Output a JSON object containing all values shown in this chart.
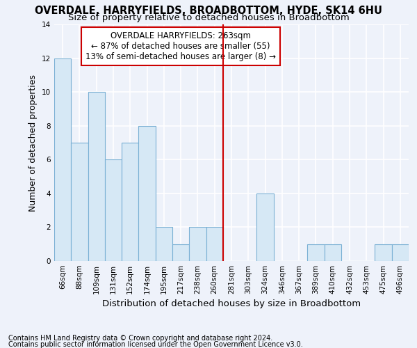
{
  "title": "OVERDALE, HARRYFIELDS, BROADBOTTOM, HYDE, SK14 6HU",
  "subtitle": "Size of property relative to detached houses in Broadbottom",
  "xlabel": "Distribution of detached houses by size in Broadbottom",
  "ylabel": "Number of detached properties",
  "categories": [
    "66sqm",
    "88sqm",
    "109sqm",
    "131sqm",
    "152sqm",
    "174sqm",
    "195sqm",
    "217sqm",
    "238sqm",
    "260sqm",
    "281sqm",
    "303sqm",
    "324sqm",
    "346sqm",
    "367sqm",
    "389sqm",
    "410sqm",
    "432sqm",
    "453sqm",
    "475sqm",
    "496sqm"
  ],
  "values": [
    12,
    7,
    10,
    6,
    7,
    8,
    2,
    1,
    2,
    2,
    0,
    0,
    4,
    0,
    0,
    1,
    1,
    0,
    0,
    1,
    1
  ],
  "bar_color": "#d6e8f5",
  "bar_edge_color": "#7ab0d4",
  "vline_color": "#cc0000",
  "vline_x_index": 9,
  "annotation_title": "OVERDALE HARRYFIELDS: 263sqm",
  "annotation_line1": "← 87% of detached houses are smaller (55)",
  "annotation_line2": "13% of semi-detached houses are larger (8) →",
  "annotation_box_color": "#cc0000",
  "annotation_bg": "#ffffff",
  "ylim": [
    0,
    14
  ],
  "yticks": [
    0,
    2,
    4,
    6,
    8,
    10,
    12,
    14
  ],
  "footer_line1": "Contains HM Land Registry data © Crown copyright and database right 2024.",
  "footer_line2": "Contains public sector information licensed under the Open Government Licence v3.0.",
  "background_color": "#eef2fa",
  "grid_color": "#ffffff",
  "title_fontsize": 10.5,
  "subtitle_fontsize": 9.5,
  "ylabel_fontsize": 9,
  "xlabel_fontsize": 9.5,
  "tick_fontsize": 7.5,
  "footer_fontsize": 7,
  "annotation_fontsize": 8.5
}
